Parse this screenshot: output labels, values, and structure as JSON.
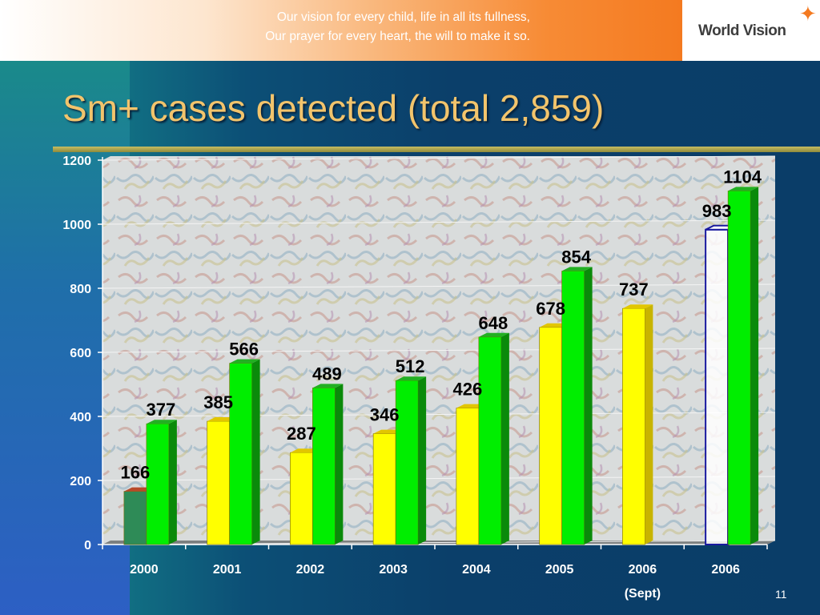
{
  "header": {
    "tagline_line1": "Our vision for every child, life in all its fullness,",
    "tagline_line2": "Our prayer for every heart, the will to make it so.",
    "logo_text": "World Vision"
  },
  "slide": {
    "title": "Sm+ cases detected (total 2,859)",
    "page_number": "11"
  },
  "colors": {
    "series_a": "#ffff00",
    "series_b": "#00ee00",
    "first_bar": "#2e8b57",
    "projection_outline": "#1a1aa0",
    "title": "#f2c46c"
  },
  "chart_data": {
    "type": "bar",
    "categories": [
      "2000",
      "2001",
      "2002",
      "2003",
      "2004",
      "2005",
      "2006",
      "2006"
    ],
    "category_sublabels": [
      "",
      "",
      "",
      "",
      "",
      "",
      "(Sept)",
      ""
    ],
    "series": [
      {
        "values": [
          166,
          385,
          287,
          346,
          426,
          678,
          737,
          983
        ]
      },
      {
        "values": [
          377,
          566,
          489,
          512,
          648,
          854,
          null,
          1104
        ]
      }
    ],
    "last_yellow_is_outline": true,
    "ylim": [
      0,
      1200
    ],
    "yticks": [
      0,
      200,
      400,
      600,
      800,
      1000,
      1200
    ],
    "ytick_labels": [
      "0",
      "200",
      "400",
      "600",
      "800",
      "1000",
      "1200"
    ],
    "grid": true,
    "legend": "none"
  }
}
